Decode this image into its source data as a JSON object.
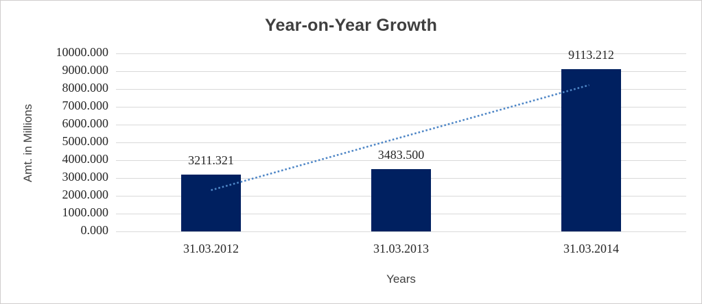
{
  "chart_data": {
    "type": "bar",
    "title": "Year-on-Year Growth",
    "xlabel": "Years",
    "ylabel": "Amt. in Millions",
    "categories": [
      "31.03.2012",
      "31.03.2013",
      "31.03.2014"
    ],
    "values": [
      3211.321,
      3483.5,
      9113.212
    ],
    "data_labels": [
      "3211.321",
      "3483.500",
      "9113.212"
    ],
    "ylim": [
      0,
      10000
    ],
    "ytick_step": 1000,
    "ytick_labels": [
      "0.000",
      "1000.000",
      "2000.000",
      "3000.000",
      "4000.000",
      "5000.000",
      "6000.000",
      "7000.000",
      "8000.000",
      "9000.000",
      "10000.000"
    ],
    "grid": true,
    "legend_position": "none",
    "bar_color": "#002060",
    "trendline": {
      "type": "linear",
      "style": "dotted",
      "color": "#4e86c6",
      "start_value": 2318,
      "end_value": 8220
    },
    "colors": {
      "title": "#3f3f3f",
      "axis_title": "#404040",
      "tick_label": "#262626",
      "gridline": "#d9d9d9",
      "frame_border": "#cfcdcd",
      "background": "#ffffff"
    }
  }
}
